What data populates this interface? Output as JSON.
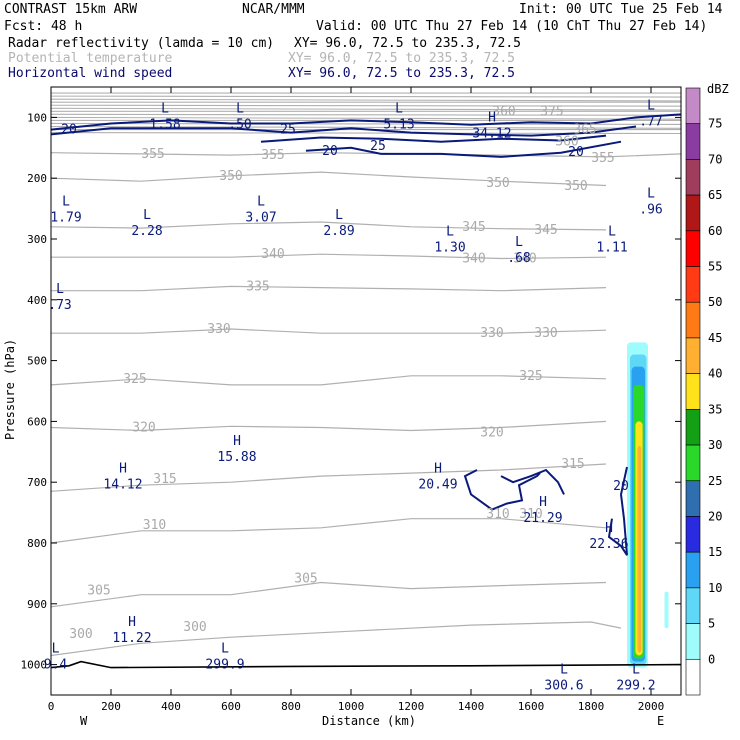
{
  "header": {
    "line1_left": "CONTRAST 15km ARW",
    "line1_mid": "NCAR/MMM",
    "line1_right": "Init: 00 UTC Tue 25 Feb 14",
    "line2_left": "Fcst:    48 h",
    "line2_right": "Valid: 00 UTC Thu 27 Feb 14 (10 ChT Thu 27 Feb 14)",
    "field1_name": "Radar reflectivity (lamda = 10 cm)",
    "field1_xy": "XY=  96.0, 72.5 to 235.3, 72.5",
    "field2_name": "Potential temperature",
    "field2_xy": "XY=  96.0, 72.5 to 235.3, 72.5",
    "field3_name": "Horizontal wind speed",
    "field3_xy": "XY=  96.0, 72.5 to 235.3, 72.5"
  },
  "colors": {
    "theta": "#b0b0b0",
    "wind": "#0a1a7a",
    "axis": "#000000"
  },
  "chart_data": {
    "type": "heatmap",
    "xlabel": "Distance (km)",
    "ylabel": "Pressure (hPa)",
    "x_ticks": [
      "0",
      "200",
      "400",
      "600",
      "800",
      "1000",
      "1200",
      "1400",
      "1600",
      "1800",
      "2000"
    ],
    "x_range": [
      0,
      2100
    ],
    "y_ticks": [
      "100",
      "200",
      "300",
      "400",
      "500",
      "600",
      "700",
      "800",
      "900",
      "1000"
    ],
    "y_range": [
      50,
      1050
    ],
    "x_end_labels": [
      "W",
      "E"
    ],
    "colorbar": {
      "unit": "dBZ",
      "levels": [
        "0",
        "5",
        "10",
        "15",
        "20",
        "25",
        "30",
        "35",
        "40",
        "45",
        "50",
        "55",
        "60",
        "65",
        "70",
        "75"
      ],
      "colors": [
        "#ffffff",
        "#9ffcfc",
        "#5fd8f8",
        "#2aa0f0",
        "#2a2ae0",
        "#2f6fb0",
        "#2ad82a",
        "#14a014",
        "#ffe21a",
        "#ffb030",
        "#ff7a14",
        "#ff3a14",
        "#ff0000",
        "#b01818",
        "#a03c5c",
        "#8a3ca0",
        "#c48ac8"
      ]
    },
    "theta_labels": [
      {
        "v": "300",
        "x": 100,
        "p": 950
      },
      {
        "v": "300",
        "x": 480,
        "p": 938
      },
      {
        "v": "305",
        "x": 160,
        "p": 878
      },
      {
        "v": "305",
        "x": 850,
        "p": 858
      },
      {
        "v": "310",
        "x": 345,
        "p": 770
      },
      {
        "v": "310",
        "x": 1490,
        "p": 752
      },
      {
        "v": "310",
        "x": 1600,
        "p": 752
      },
      {
        "v": "315",
        "x": 380,
        "p": 695
      },
      {
        "v": "315",
        "x": 1740,
        "p": 670
      },
      {
        "v": "320",
        "x": 310,
        "p": 610
      },
      {
        "v": "320",
        "x": 1470,
        "p": 618
      },
      {
        "v": "325",
        "x": 280,
        "p": 530
      },
      {
        "v": "325",
        "x": 1600,
        "p": 525
      },
      {
        "v": "330",
        "x": 560,
        "p": 448
      },
      {
        "v": "330",
        "x": 1470,
        "p": 455
      },
      {
        "v": "330",
        "x": 1650,
        "p": 455
      },
      {
        "v": "335",
        "x": 690,
        "p": 378
      },
      {
        "v": "340",
        "x": 740,
        "p": 325
      },
      {
        "v": "340",
        "x": 1410,
        "p": 332
      },
      {
        "v": "340",
        "x": 1580,
        "p": 332
      },
      {
        "v": "345",
        "x": 1410,
        "p": 280
      },
      {
        "v": "345",
        "x": 1650,
        "p": 285
      },
      {
        "v": "350",
        "x": 600,
        "p": 196
      },
      {
        "v": "350",
        "x": 1490,
        "p": 208
      },
      {
        "v": "350",
        "x": 1750,
        "p": 213
      },
      {
        "v": "355",
        "x": 340,
        "p": 160
      },
      {
        "v": "355",
        "x": 740,
        "p": 162
      },
      {
        "v": "355",
        "x": 1840,
        "p": 167
      },
      {
        "v": "360",
        "x": 1510,
        "p": 90
      },
      {
        "v": "360",
        "x": 1720,
        "p": 140
      },
      {
        "v": "365",
        "x": 1780,
        "p": 120
      },
      {
        "v": "375",
        "x": 1670,
        "p": 90
      }
    ],
    "wind_labels": [
      {
        "v": "20",
        "x": 60,
        "p": 120
      },
      {
        "v": "25",
        "x": 790,
        "p": 120
      },
      {
        "v": "20",
        "x": 930,
        "p": 155
      },
      {
        "v": "25",
        "x": 1090,
        "p": 147
      },
      {
        "v": "20",
        "x": 1750,
        "p": 157
      },
      {
        "v": "20",
        "x": 1900,
        "p": 706
      }
    ],
    "extrema": [
      {
        "type": "L",
        "value": "1.58",
        "x": 380,
        "p": 105
      },
      {
        "type": "L",
        "value": ".50",
        "x": 630,
        "p": 105
      },
      {
        "type": "L",
        "value": "5.13",
        "x": 1160,
        "p": 105
      },
      {
        "type": "H",
        "value": "34.12",
        "x": 1470,
        "p": 120
      },
      {
        "type": "L",
        "value": ".77",
        "x": 2000,
        "p": 100
      },
      {
        "type": "L",
        "value": "1.79",
        "x": 50,
        "p": 258
      },
      {
        "type": "L",
        "value": "2.28",
        "x": 320,
        "p": 280
      },
      {
        "type": "L",
        "value": "3.07",
        "x": 700,
        "p": 258
      },
      {
        "type": "L",
        "value": "2.89",
        "x": 960,
        "p": 280
      },
      {
        "type": "L",
        "value": "1.30",
        "x": 1330,
        "p": 307
      },
      {
        "type": "L",
        "value": ".68",
        "x": 1560,
        "p": 325
      },
      {
        "type": "L",
        "value": "1.11",
        "x": 1870,
        "p": 307
      },
      {
        "type": "L",
        "value": ".96",
        "x": 2000,
        "p": 245
      },
      {
        "type": "L",
        "value": ".73",
        "x": 30,
        "p": 402
      },
      {
        "type": "H",
        "value": "15.88",
        "x": 620,
        "p": 652
      },
      {
        "type": "H",
        "value": "14.12",
        "x": 240,
        "p": 697
      },
      {
        "type": "H",
        "value": "20.49",
        "x": 1290,
        "p": 697
      },
      {
        "type": "H",
        "value": "21.29",
        "x": 1640,
        "p": 752
      },
      {
        "type": "H",
        "value": "22.36",
        "x": 1860,
        "p": 795
      },
      {
        "type": "H",
        "value": "11.22",
        "x": 270,
        "p": 950
      },
      {
        "type": "L",
        "value": "299.9",
        "x": 580,
        "p": 993
      },
      {
        "type": "L",
        "value": "300.6",
        "x": 1710,
        "p": 1028
      },
      {
        "type": "L",
        "value": "299.2",
        "x": 1950,
        "p": 1028
      },
      {
        "type": "L",
        "value": "9.4",
        "x": 15,
        "p": 993
      }
    ]
  }
}
